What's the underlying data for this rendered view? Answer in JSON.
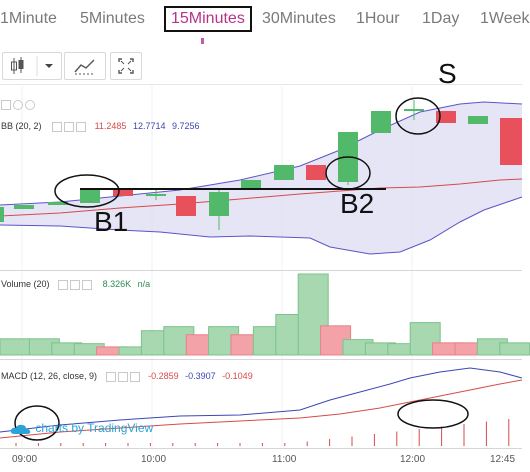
{
  "timeframe_tabs": [
    {
      "label": "1Minute"
    },
    {
      "label": "5Minutes"
    },
    {
      "label": "15Minutes",
      "active": true
    },
    {
      "label": "30Minutes"
    },
    {
      "label": "1Hour"
    },
    {
      "label": "1Day"
    },
    {
      "label": "1Week"
    }
  ],
  "toolbar": {
    "candle_icon": "candlestick-icon",
    "dropdown_icon": "chevron-down-icon",
    "indicators_icon": "indicators-icon",
    "fullscreen_icon": "fullscreen-icon"
  },
  "main_panel": {
    "bb_label": "BB (20, 2)",
    "bb_values": [
      "11.2485",
      "12.7714",
      "9.7256"
    ]
  },
  "volume_panel": {
    "label": "Volume (20)",
    "value": "8.326K",
    "na": "n/a"
  },
  "macd_panel": {
    "label": "MACD (12, 26, close, 9)",
    "values": [
      "-0.2859",
      "-0.3907",
      "-0.1049"
    ]
  },
  "watermark": "charts by TradingView",
  "time_axis": [
    "09:00",
    "10:00",
    "11:00",
    "12:00",
    "12:45"
  ],
  "annotations": {
    "b1": "B1",
    "b2": "B2",
    "s": "S"
  },
  "colors": {
    "up": "#53b96a",
    "down": "#e8505b",
    "bb_band": "#5a55c8",
    "bb_basis": "#d64a4a",
    "active_tab": "#b5338a"
  },
  "chart_data": {
    "type": "candlestick",
    "volume": [
      2,
      2,
      1.5,
      1.4,
      1,
      1,
      3,
      3.5,
      2.5,
      3.5,
      2.5,
      3.5,
      5,
      10,
      3.6,
      1.9,
      1.5,
      1.4,
      4,
      1.5,
      1.5,
      2,
      1.5
    ]
  }
}
